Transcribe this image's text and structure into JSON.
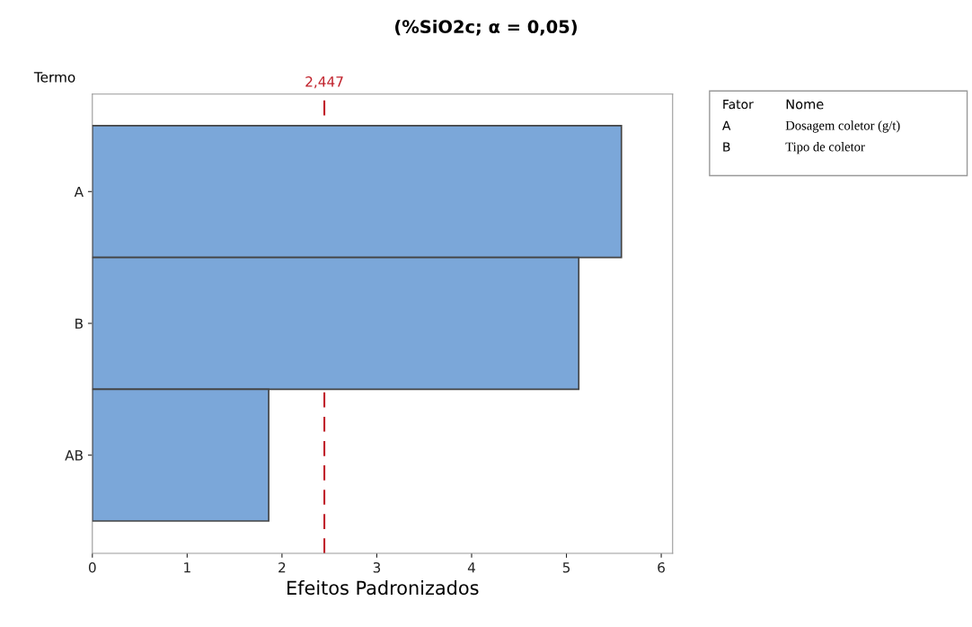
{
  "chart_data": {
    "type": "bar",
    "orientation": "horizontal",
    "title": "(%SiO2c; α = 0,05)",
    "xlabel": "Efeitos Padronizados",
    "ylabel": "Termo",
    "categories": [
      "A",
      "B",
      "AB"
    ],
    "values": [
      5.58,
      5.13,
      1.86
    ],
    "color": "#7ba7d9",
    "xlim": [
      0,
      6.12
    ],
    "xticks": [
      0,
      1,
      2,
      3,
      4,
      5,
      6
    ],
    "ref_lines": [
      {
        "axis": "x",
        "value": 2.447,
        "label": "2,447",
        "color": "#c0202a",
        "line_style": "dashed"
      }
    ],
    "annotations": [
      "Fator",
      "Nome",
      "A",
      "Dosagem coletor (g/t)",
      "B",
      "Tipo de coletor"
    ],
    "grid": false,
    "legend": false
  }
}
